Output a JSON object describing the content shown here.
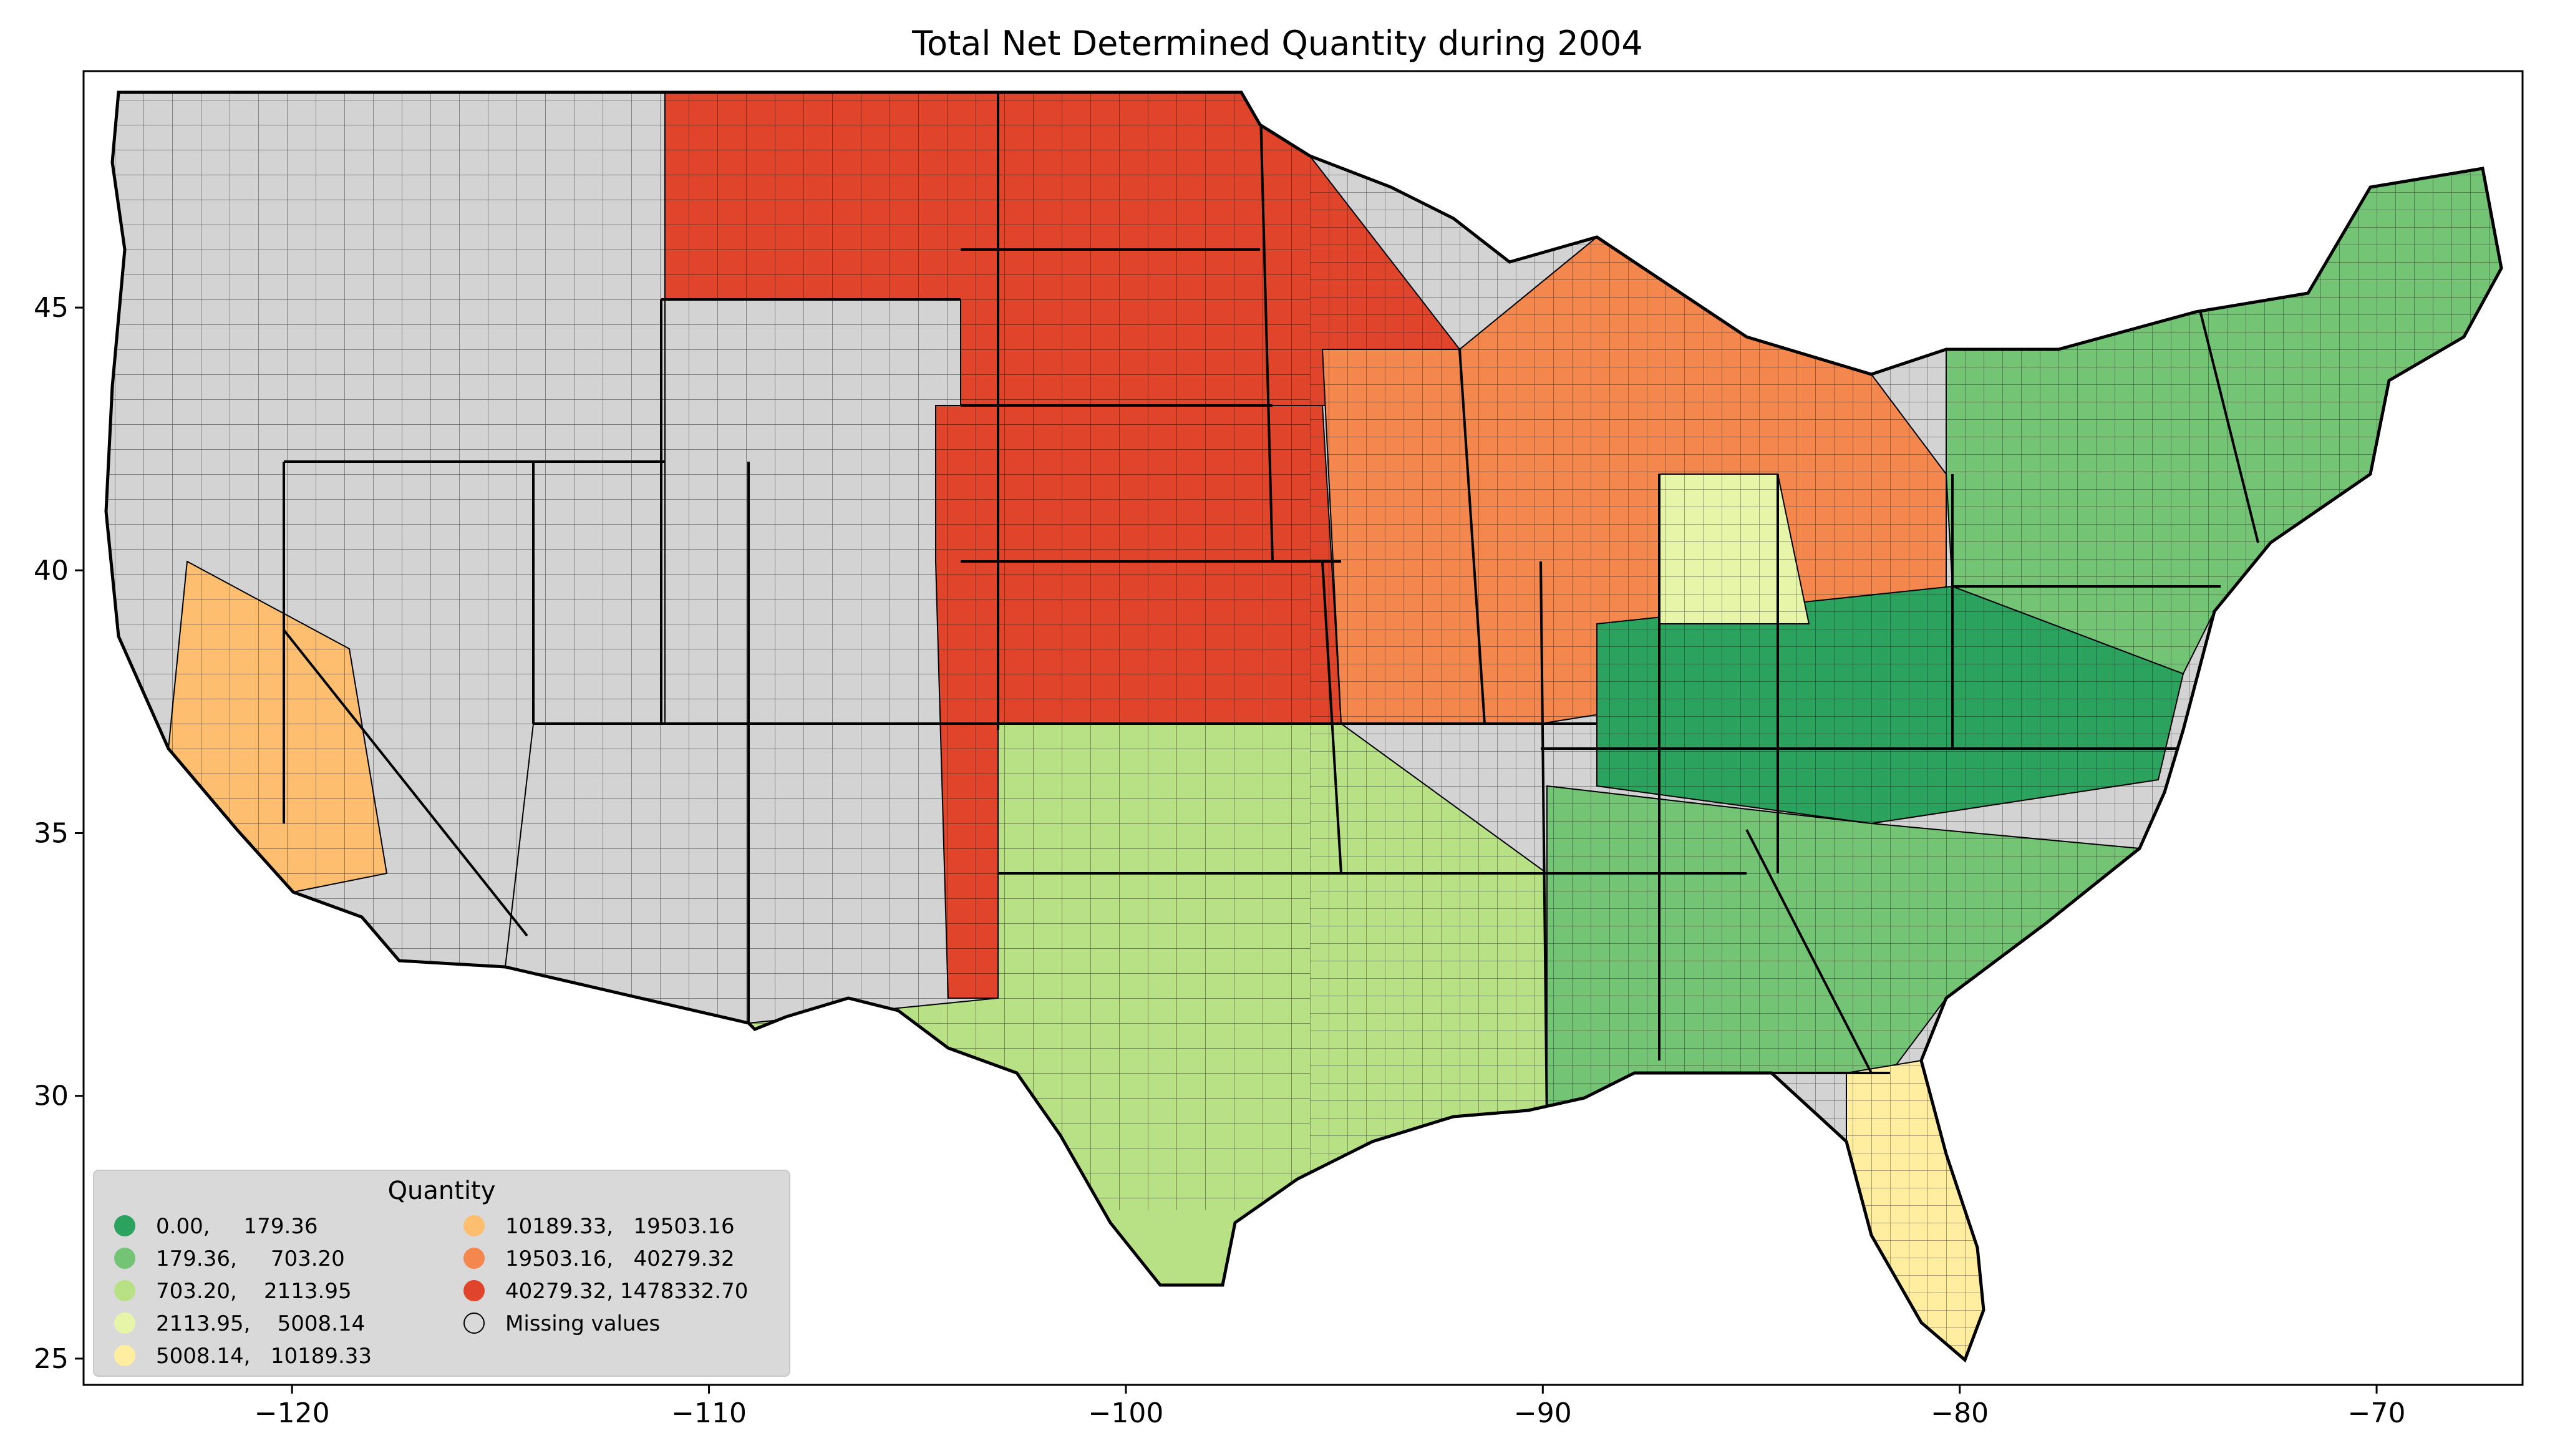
{
  "title": "Total Net Determined Quantity during 2004",
  "map": {
    "projection": "plate carree (lon/lat)",
    "lon_range": [
      -125,
      -66.5
    ],
    "lat_range": [
      24.5,
      49.5
    ],
    "missing_color": "#d3d3d3",
    "county_border_color": "#000000"
  },
  "x_axis": {
    "ticks": [
      -120,
      -110,
      -100,
      -90,
      -80,
      -70
    ],
    "labels": [
      "−120",
      "−110",
      "−100",
      "−90",
      "−80",
      "−70"
    ]
  },
  "y_axis": {
    "ticks": [
      25,
      30,
      35,
      40,
      45
    ],
    "labels": [
      "25",
      "30",
      "35",
      "40",
      "45"
    ]
  },
  "legend": {
    "title": "Quantity",
    "placement": "lower-left",
    "entries": [
      {
        "label": "0.00,     179.36",
        "color": "#2ca25f"
      },
      {
        "label": "179.36,     703.20",
        "color": "#74c476"
      },
      {
        "label": "703.20,    2113.95",
        "color": "#b8e186"
      },
      {
        "label": "2113.95,    5008.14",
        "color": "#e6f5a8"
      },
      {
        "label": "5008.14,   10189.33",
        "color": "#ffeda0"
      },
      {
        "label": "10189.33,   19503.16",
        "color": "#fdbf6f"
      },
      {
        "label": "19503.16,   40279.32",
        "color": "#f4874d"
      },
      {
        "label": "40279.32, 1478332.70",
        "color": "#e0442a"
      },
      {
        "label": "Missing values",
        "color": "none"
      }
    ]
  },
  "regions": [
    {
      "id": "pacific-nw",
      "color": "#2ca25f"
    },
    {
      "id": "northern-rockies",
      "color": "#b8e186"
    },
    {
      "id": "great-basin",
      "color": "#d3d3d3"
    },
    {
      "id": "california-central",
      "color": "#fdbf6f"
    },
    {
      "id": "southwest",
      "color": "#d3d3d3"
    },
    {
      "id": "northern-plains",
      "color": "#e0442a"
    },
    {
      "id": "central-plains",
      "color": "#e0442a"
    },
    {
      "id": "corn-belt",
      "color": "#f4874d"
    },
    {
      "id": "texas",
      "color": "#b8e186"
    },
    {
      "id": "southeast",
      "color": "#74c476"
    },
    {
      "id": "appalachia",
      "color": "#2ca25f"
    },
    {
      "id": "northeast",
      "color": "#74c476"
    },
    {
      "id": "florida",
      "color": "#ffeda0"
    },
    {
      "id": "great-lakes",
      "color": "#e6f5a8"
    }
  ]
}
